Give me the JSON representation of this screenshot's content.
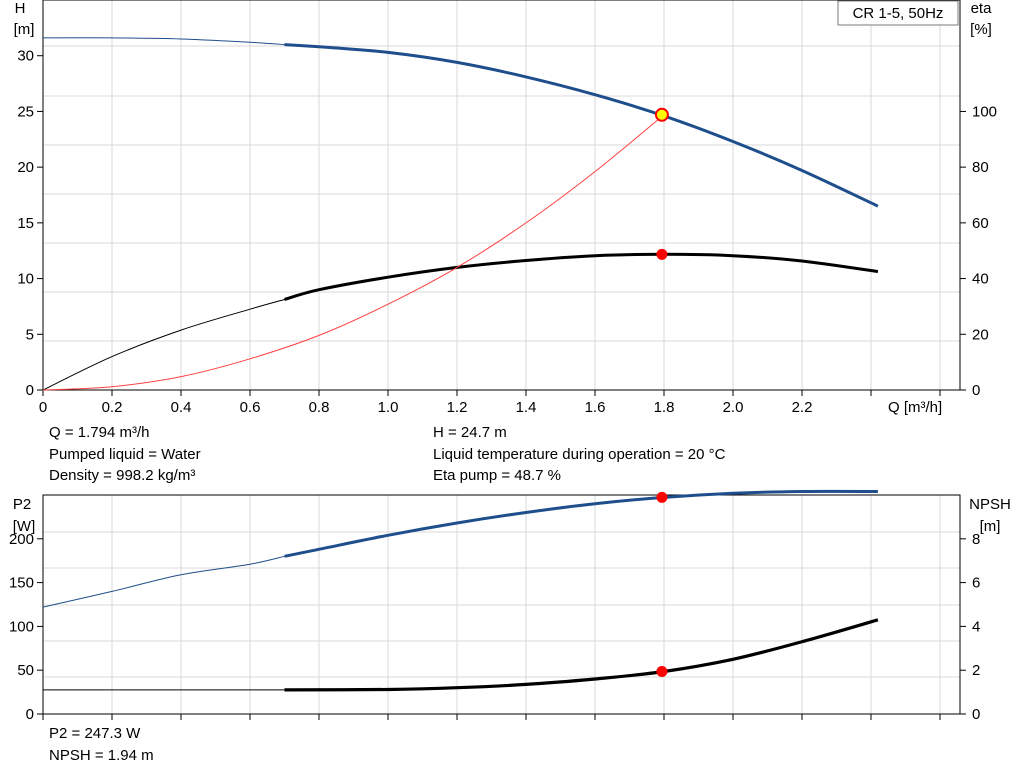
{
  "top_chart": {
    "badge": "CR 1-5, 50Hz",
    "y_left_title": [
      "H",
      "[m]"
    ],
    "y_right_title": [
      "eta",
      "[%]"
    ],
    "x_title": "Q [m³/h]"
  },
  "bottom_chart": {
    "y_left_title": [
      "P2",
      "[W]"
    ],
    "y_right_title": [
      "NPSH",
      "[m]"
    ]
  },
  "info": {
    "flow": "Q = 1.794 m³/h",
    "liquid": "Pumped liquid = Water",
    "density": "Density = 998.2 kg/m³",
    "head": "H = 24.7 m",
    "temperature": "Liquid temperature during operation = 20 °C",
    "eta_pump": "Eta pump = 48.7 %",
    "p2": "P2 = 247.3 W",
    "npsh": "NPSH = 1.94 m"
  },
  "colors": {
    "head_curve": "#1f4e8c",
    "p2_curve": "#1f4e8c",
    "eta_curve": "#000000",
    "npsh_curve": "#000000",
    "system_curve": "#ff4040",
    "duty_marker": "#ff0000",
    "duty_marker_head": "#ffff00",
    "grid": "#d8d8d8"
  },
  "chart_data": [
    {
      "type": "line",
      "x_axis": {
        "range": [
          0,
          2.6
        ],
        "ticks": [
          "0",
          "0.2",
          "0.4",
          "0.6",
          "0.8",
          "1.0",
          "1.2",
          "1.4",
          "1.6",
          "1.8",
          "2.0",
          "2.2"
        ]
      },
      "y_left": {
        "range": [
          0,
          35
        ],
        "ticks": [
          "0",
          "5",
          "10",
          "15",
          "20",
          "25",
          "30"
        ]
      },
      "y_right": {
        "range": [
          0,
          140
        ],
        "ticks": [
          "0",
          "20",
          "40",
          "60",
          "80",
          "100"
        ]
      },
      "series": [
        {
          "axis": "left",
          "key": "head",
          "x": [
            0,
            0.2,
            0.4,
            0.6,
            0.7,
            0.8,
            1.0,
            1.2,
            1.4,
            1.6,
            1.8,
            2.0,
            2.2,
            2.42
          ],
          "y": [
            31.6,
            31.6,
            31.5,
            31.2,
            31.0,
            30.8,
            30.3,
            29.4,
            28.1,
            26.5,
            24.6,
            22.3,
            19.7,
            16.5
          ]
        },
        {
          "axis": "right",
          "key": "eta",
          "x": [
            0,
            0.2,
            0.4,
            0.6,
            0.7,
            0.8,
            1.0,
            1.2,
            1.4,
            1.6,
            1.8,
            2.0,
            2.2,
            2.42
          ],
          "y": [
            0,
            12,
            21.5,
            29,
            32.5,
            36,
            40.5,
            44,
            46.5,
            48.2,
            48.7,
            48.2,
            46.3,
            42.5
          ]
        },
        {
          "axis": "left",
          "key": "system",
          "x": [
            0,
            0.2,
            0.4,
            0.6,
            0.8,
            1.0,
            1.2,
            1.4,
            1.6,
            1.8
          ],
          "y": [
            0,
            0.3,
            1.2,
            2.8,
            4.9,
            7.7,
            11.0,
            15.0,
            19.6,
            24.7
          ]
        }
      ],
      "duty_points": [
        {
          "key": "head",
          "x": 1.794,
          "y": 24.7
        },
        {
          "key": "eta",
          "x": 1.794,
          "y": 48.7
        }
      ]
    },
    {
      "type": "line",
      "x_axis": {
        "range": [
          0,
          2.6
        ]
      },
      "y_left": {
        "range": [
          0,
          250
        ],
        "ticks": [
          "0",
          "50",
          "100",
          "150",
          "200"
        ]
      },
      "y_right": {
        "range": [
          0,
          10
        ],
        "ticks": [
          "0",
          "2",
          "4",
          "6",
          "8"
        ]
      },
      "series": [
        {
          "axis": "left",
          "key": "p2",
          "x": [
            0,
            0.2,
            0.4,
            0.6,
            0.7,
            0.8,
            1.0,
            1.2,
            1.4,
            1.6,
            1.8,
            2.0,
            2.2,
            2.42
          ],
          "y": [
            122,
            140,
            159,
            171,
            180,
            188,
            204,
            218,
            230,
            240,
            247.3,
            252,
            254,
            254
          ]
        },
        {
          "axis": "right",
          "key": "npsh",
          "x": [
            0,
            0.7,
            1.0,
            1.2,
            1.4,
            1.6,
            1.8,
            2.0,
            2.2,
            2.42
          ],
          "y": [
            1.1,
            1.1,
            1.12,
            1.2,
            1.35,
            1.6,
            1.94,
            2.5,
            3.3,
            4.3
          ]
        }
      ],
      "duty_points": [
        {
          "key": "p2",
          "x": 1.794,
          "y": 247.3
        },
        {
          "key": "npsh",
          "x": 1.794,
          "y": 1.94
        }
      ]
    }
  ]
}
